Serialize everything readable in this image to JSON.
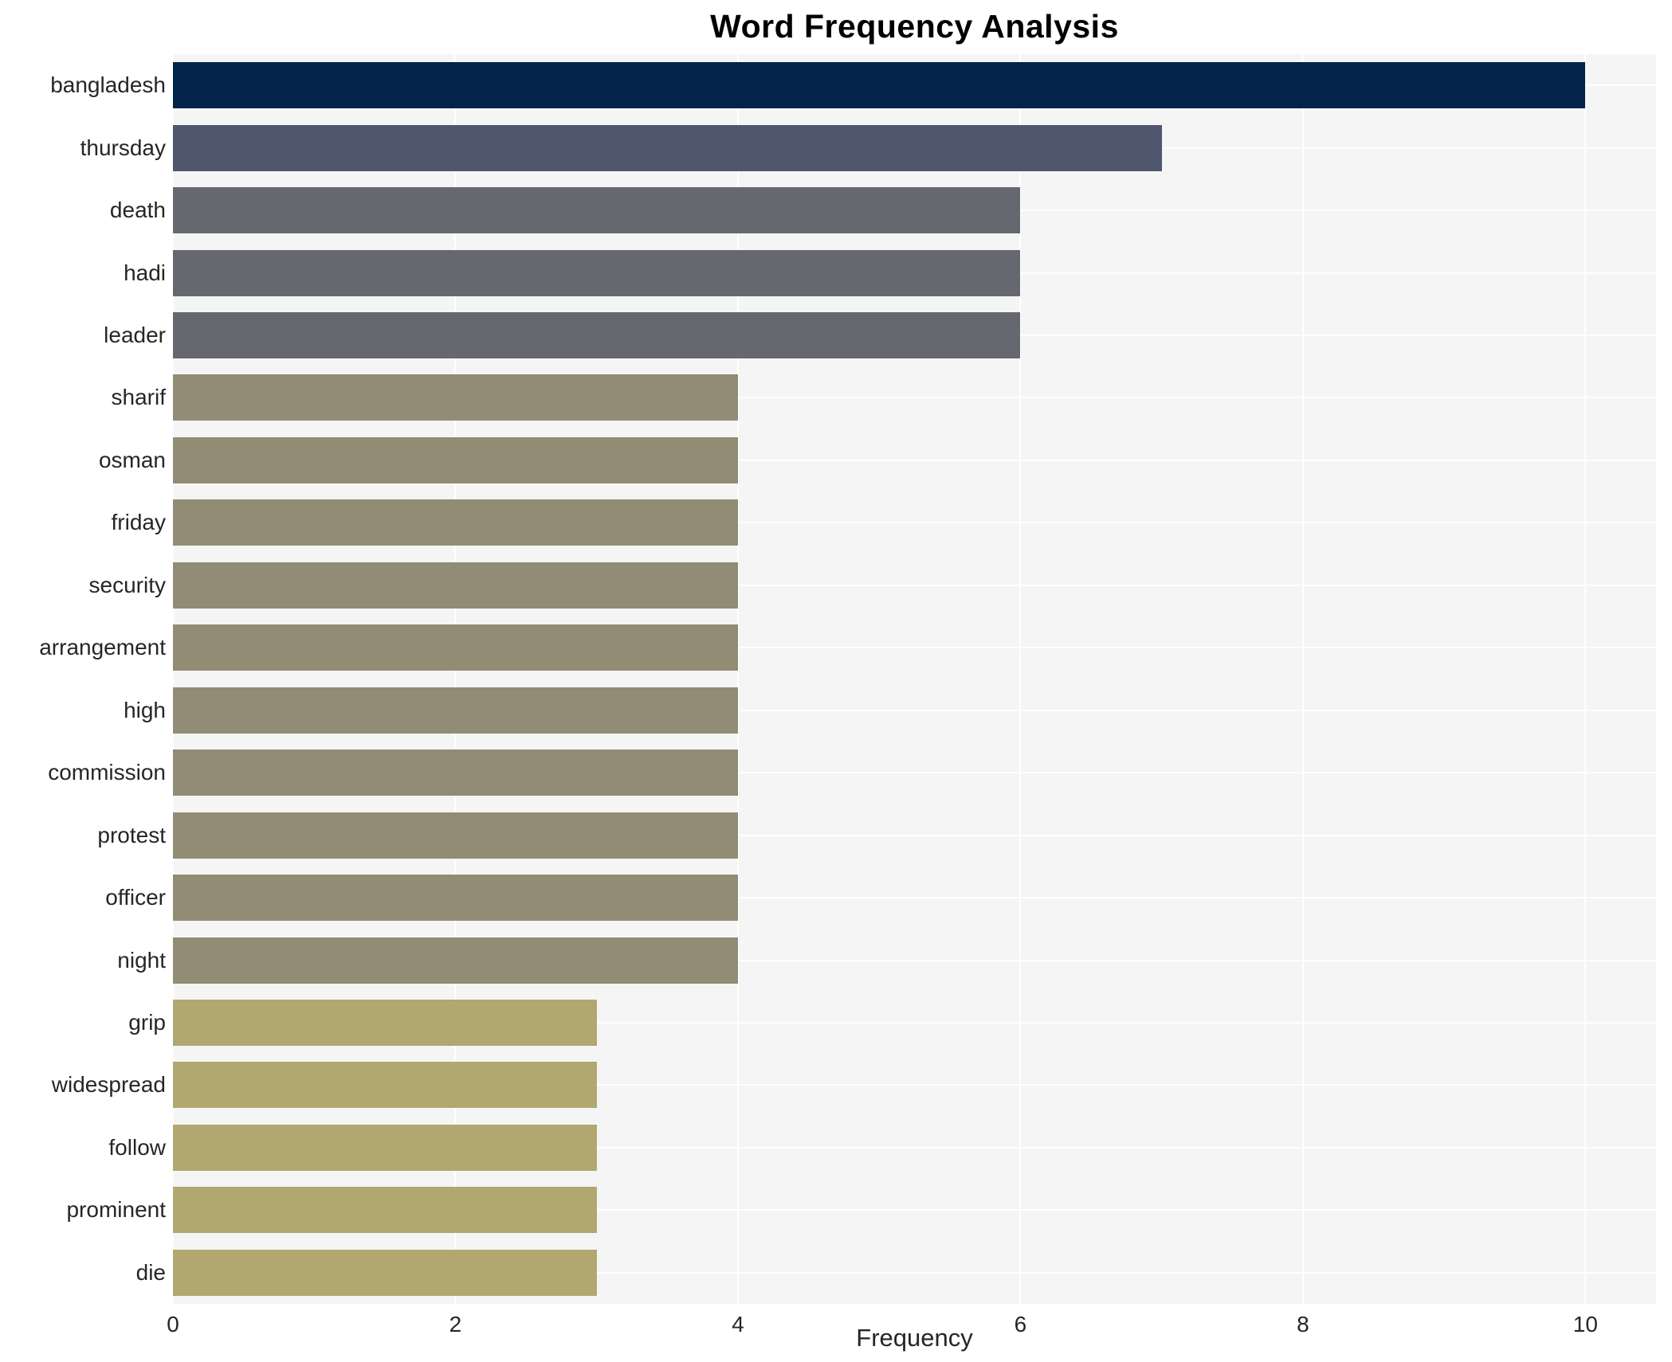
{
  "chart_data": {
    "type": "bar",
    "orientation": "horizontal",
    "title": "Word Frequency Analysis",
    "xlabel": "Frequency",
    "ylabel": "",
    "categories": [
      "bangladesh",
      "thursday",
      "death",
      "hadi",
      "leader",
      "sharif",
      "osman",
      "friday",
      "security",
      "arrangement",
      "high",
      "commission",
      "protest",
      "officer",
      "night",
      "grip",
      "widespread",
      "follow",
      "prominent",
      "die"
    ],
    "values": [
      10,
      7,
      6,
      6,
      6,
      4,
      4,
      4,
      4,
      4,
      4,
      4,
      4,
      4,
      4,
      3,
      3,
      3,
      3,
      3
    ],
    "bar_colors": [
      "#042348",
      "#4e576d",
      "#65686f",
      "#65686f",
      "#65686f",
      "#928c74",
      "#928c74",
      "#928c74",
      "#928c74",
      "#928c74",
      "#928c74",
      "#928c74",
      "#928c74",
      "#928c74",
      "#928c74",
      "#b1a770",
      "#b1a770",
      "#b1a770",
      "#b1a770",
      "#b1a770"
    ],
    "xticks": [
      0,
      2,
      4,
      6,
      8,
      10
    ],
    "xlim": [
      0,
      10.5
    ],
    "grid": true,
    "legend": false,
    "colors": {
      "plot_background": "#f5f5f6",
      "grid_line": "#ffffff",
      "tick_text": "#262626",
      "title_text": "#000000"
    }
  }
}
